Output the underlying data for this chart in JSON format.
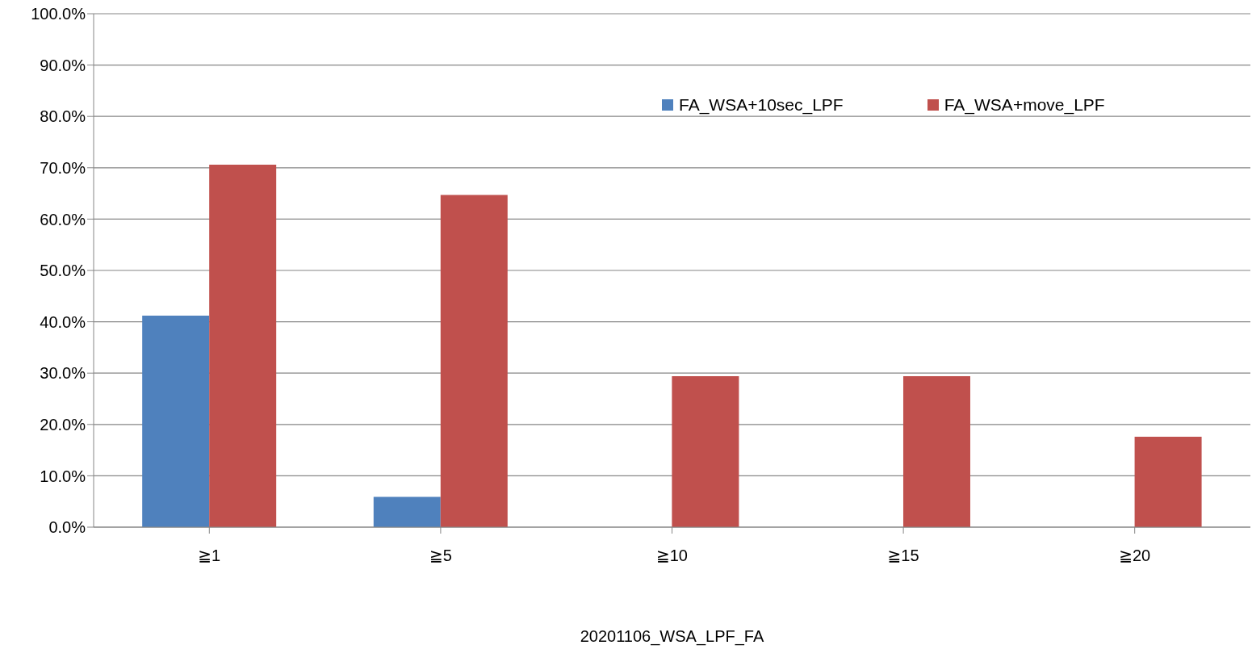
{
  "chart_data": {
    "type": "bar",
    "xlabel": "20201106_WSA_LPF_FA",
    "categories": [
      "≧1",
      "≧5",
      "≧10",
      "≧15",
      "≧20"
    ],
    "series": [
      {
        "name": "FA_WSA+10sec_LPF",
        "color": "#4f81bd",
        "values": [
          41.2,
          5.9,
          0,
          0,
          0
        ]
      },
      {
        "name": "FA_WSA+move_LPF",
        "color": "#c0504d",
        "values": [
          70.6,
          64.7,
          29.4,
          29.4,
          17.6
        ]
      }
    ],
    "ylim": [
      0,
      100
    ],
    "yticks": [
      {
        "value": 0,
        "label": "0.0%"
      },
      {
        "value": 10,
        "label": "10.0%"
      },
      {
        "value": 20,
        "label": "20.0%"
      },
      {
        "value": 30,
        "label": "30.0%"
      },
      {
        "value": 40,
        "label": "40.0%"
      },
      {
        "value": 50,
        "label": "50.0%"
      },
      {
        "value": 60,
        "label": "60.0%"
      },
      {
        "value": 70,
        "label": "70.0%"
      },
      {
        "value": 80,
        "label": "80.0%"
      },
      {
        "value": 90,
        "label": "90.0%"
      },
      {
        "value": 100,
        "label": "100.0%"
      }
    ],
    "grid": "y",
    "legend": "top right"
  }
}
